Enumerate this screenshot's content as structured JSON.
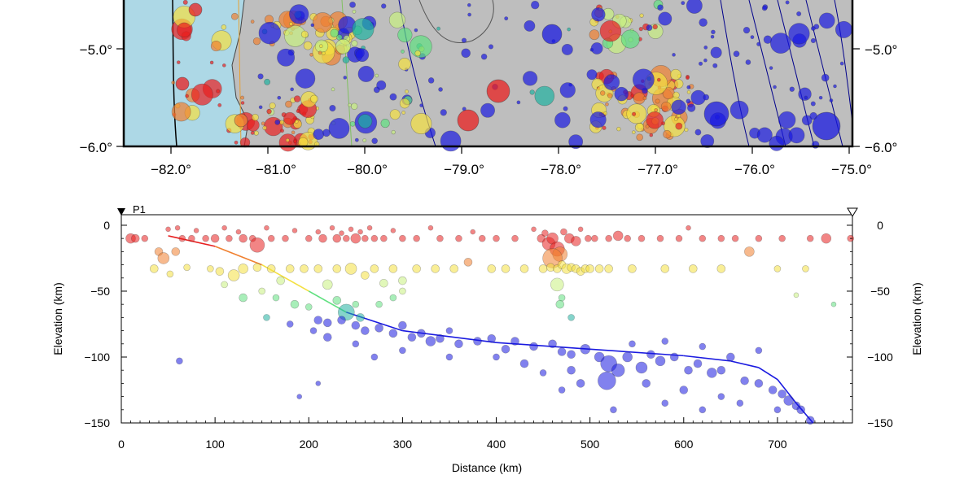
{
  "map": {
    "lon_ticks": [
      "−82.0°",
      "−81.0°",
      "−80.0°",
      "−79.0°",
      "−78.0°",
      "−77.0°",
      "−76.0°",
      "−75.0°"
    ],
    "lat_ticks": [
      "−5.0°",
      "−6.0°"
    ],
    "colors": {
      "ocean": "#add8e6",
      "land": "#bebebe",
      "contour": "#00008b",
      "border": "#000000"
    }
  },
  "profile": {
    "start_label": "P1",
    "end_marker": "open-triangle"
  },
  "chart_data": {
    "type": "scatter",
    "title": "",
    "xlabel": "Distance (km)",
    "ylabel": "Elevation (km)",
    "xlim": [
      0,
      780
    ],
    "ylim": [
      -150,
      8
    ],
    "x_ticks": [
      0,
      100,
      200,
      300,
      400,
      500,
      600,
      700
    ],
    "y_ticks": [
      0,
      -50,
      -100,
      -150
    ],
    "grid": false,
    "legend": "none",
    "slab_curve": [
      [
        50,
        -8
      ],
      [
        100,
        -16
      ],
      [
        150,
        -30
      ],
      [
        200,
        -50
      ],
      [
        240,
        -66
      ],
      [
        300,
        -80
      ],
      [
        400,
        -89
      ],
      [
        500,
        -94
      ],
      [
        600,
        -99
      ],
      [
        650,
        -103
      ],
      [
        680,
        -108
      ],
      [
        700,
        -117
      ],
      [
        720,
        -135
      ],
      [
        738,
        -152
      ]
    ],
    "events": [
      [
        10,
        -10,
        6
      ],
      [
        15,
        -10,
        5
      ],
      [
        25,
        -10,
        4
      ],
      [
        40,
        -20,
        5
      ],
      [
        50,
        -3,
        3
      ],
      [
        60,
        -2,
        3
      ],
      [
        65,
        -10,
        4
      ],
      [
        75,
        -10,
        4
      ],
      [
        80,
        -4,
        3
      ],
      [
        90,
        -10,
        4
      ],
      [
        100,
        -10,
        5
      ],
      [
        110,
        -2,
        3
      ],
      [
        115,
        -10,
        4
      ],
      [
        125,
        -5,
        3
      ],
      [
        130,
        -10,
        5
      ],
      [
        140,
        -10,
        4
      ],
      [
        145,
        -15,
        9
      ],
      [
        155,
        -2,
        3
      ],
      [
        160,
        -10,
        4
      ],
      [
        175,
        -10,
        4
      ],
      [
        185,
        -4,
        3
      ],
      [
        200,
        -10,
        4
      ],
      [
        210,
        -5,
        3
      ],
      [
        215,
        -10,
        5
      ],
      [
        225,
        -2,
        3
      ],
      [
        230,
        -10,
        5
      ],
      [
        235,
        -6,
        3
      ],
      [
        240,
        -10,
        4
      ],
      [
        245,
        -3,
        3
      ],
      [
        250,
        -10,
        6
      ],
      [
        255,
        -5,
        3
      ],
      [
        260,
        -10,
        4
      ],
      [
        265,
        -2,
        3
      ],
      [
        270,
        -10,
        4
      ],
      [
        280,
        -10,
        4
      ],
      [
        290,
        -4,
        3
      ],
      [
        300,
        -10,
        4
      ],
      [
        315,
        -10,
        4
      ],
      [
        330,
        -2,
        3
      ],
      [
        340,
        -10,
        4
      ],
      [
        360,
        -10,
        4
      ],
      [
        375,
        -5,
        3
      ],
      [
        385,
        -10,
        4
      ],
      [
        400,
        -10,
        4
      ],
      [
        420,
        -10,
        4
      ],
      [
        440,
        -3,
        3
      ],
      [
        448,
        -10,
        5
      ],
      [
        452,
        -6,
        4
      ],
      [
        456,
        -14,
        8
      ],
      [
        460,
        -10,
        7
      ],
      [
        465,
        -18,
        9
      ],
      [
        468,
        -22,
        9
      ],
      [
        472,
        -5,
        4
      ],
      [
        478,
        -10,
        6
      ],
      [
        485,
        -12,
        6
      ],
      [
        490,
        -3,
        3
      ],
      [
        498,
        -10,
        4
      ],
      [
        505,
        -10,
        4
      ],
      [
        520,
        -10,
        4
      ],
      [
        530,
        -8,
        6
      ],
      [
        540,
        -10,
        4
      ],
      [
        555,
        -10,
        4
      ],
      [
        575,
        -10,
        4
      ],
      [
        595,
        -10,
        4
      ],
      [
        605,
        -2,
        3
      ],
      [
        620,
        -10,
        4
      ],
      [
        640,
        -10,
        4
      ],
      [
        655,
        -10,
        4
      ],
      [
        680,
        -10,
        4
      ],
      [
        705,
        -10,
        4
      ],
      [
        735,
        -10,
        4
      ],
      [
        752,
        -10,
        6
      ],
      [
        778,
        -10,
        4
      ],
      [
        460,
        -25,
        12
      ],
      [
        45,
        -25,
        7
      ],
      [
        58,
        -20,
        5
      ],
      [
        35,
        -33,
        5
      ],
      [
        52,
        -37,
        4
      ],
      [
        70,
        -32,
        4
      ],
      [
        95,
        -33,
        4
      ],
      [
        120,
        -38,
        7
      ],
      [
        130,
        -33,
        6
      ],
      [
        145,
        -32,
        5
      ],
      [
        160,
        -33,
        5
      ],
      [
        170,
        -42,
        5
      ],
      [
        180,
        -33,
        5
      ],
      [
        195,
        -33,
        5
      ],
      [
        210,
        -33,
        5
      ],
      [
        220,
        -45,
        6
      ],
      [
        230,
        -33,
        5
      ],
      [
        245,
        -33,
        7
      ],
      [
        260,
        -38,
        5
      ],
      [
        270,
        -33,
        5
      ],
      [
        280,
        -44,
        5
      ],
      [
        290,
        -33,
        5
      ],
      [
        300,
        -42,
        5
      ],
      [
        315,
        -33,
        5
      ],
      [
        335,
        -33,
        5
      ],
      [
        355,
        -33,
        5
      ],
      [
        370,
        -28,
        5
      ],
      [
        395,
        -33,
        5
      ],
      [
        410,
        -33,
        5
      ],
      [
        430,
        -33,
        5
      ],
      [
        450,
        -33,
        5
      ],
      [
        458,
        -32,
        5
      ],
      [
        465,
        -33,
        5
      ],
      [
        470,
        -30,
        5
      ],
      [
        475,
        -33,
        6
      ],
      [
        480,
        -32,
        5
      ],
      [
        485,
        -33,
        5
      ],
      [
        490,
        -35,
        5
      ],
      [
        495,
        -33,
        5
      ],
      [
        500,
        -33,
        5
      ],
      [
        510,
        -33,
        5
      ],
      [
        520,
        -33,
        5
      ],
      [
        545,
        -33,
        5
      ],
      [
        580,
        -33,
        5
      ],
      [
        610,
        -33,
        5
      ],
      [
        640,
        -33,
        5
      ],
      [
        670,
        -20,
        6
      ],
      [
        700,
        -33,
        4
      ],
      [
        730,
        -33,
        4
      ],
      [
        150,
        -50,
        4
      ],
      [
        165,
        -55,
        4
      ],
      [
        185,
        -60,
        5
      ],
      [
        200,
        -62,
        4
      ],
      [
        210,
        -72,
        5
      ],
      [
        230,
        -57,
        5
      ],
      [
        250,
        -60,
        4
      ],
      [
        255,
        -70,
        5
      ],
      [
        275,
        -60,
        4
      ],
      [
        290,
        -55,
        4
      ],
      [
        300,
        -50,
        4
      ],
      [
        465,
        -45,
        8
      ],
      [
        468,
        -60,
        5
      ],
      [
        470,
        -55,
        4
      ],
      [
        480,
        -70,
        4
      ],
      [
        720,
        -53,
        3
      ],
      [
        760,
        -60,
        3
      ],
      [
        130,
        -55,
        5
      ],
      [
        110,
        -45,
        4
      ],
      [
        105,
        -35,
        5
      ],
      [
        240,
        -66,
        10
      ],
      [
        220,
        -74,
        5
      ],
      [
        235,
        -72,
        5
      ],
      [
        250,
        -76,
        5
      ],
      [
        260,
        -80,
        5
      ],
      [
        275,
        -78,
        5
      ],
      [
        290,
        -82,
        5
      ],
      [
        300,
        -76,
        5
      ],
      [
        310,
        -85,
        5
      ],
      [
        320,
        -82,
        5
      ],
      [
        330,
        -88,
        6
      ],
      [
        340,
        -86,
        5
      ],
      [
        350,
        -80,
        4
      ],
      [
        360,
        -90,
        5
      ],
      [
        380,
        -88,
        5
      ],
      [
        395,
        -86,
        5
      ],
      [
        410,
        -94,
        5
      ],
      [
        420,
        -88,
        5
      ],
      [
        440,
        -92,
        5
      ],
      [
        460,
        -90,
        5
      ],
      [
        470,
        -96,
        5
      ],
      [
        480,
        -98,
        5
      ],
      [
        495,
        -94,
        6
      ],
      [
        510,
        -100,
        6
      ],
      [
        520,
        -105,
        10
      ],
      [
        530,
        -110,
        8
      ],
      [
        540,
        -100,
        6
      ],
      [
        555,
        -108,
        7
      ],
      [
        565,
        -98,
        5
      ],
      [
        575,
        -103,
        6
      ],
      [
        590,
        -100,
        5
      ],
      [
        605,
        -110,
        5
      ],
      [
        615,
        -105,
        5
      ],
      [
        630,
        -112,
        6
      ],
      [
        640,
        -110,
        5
      ],
      [
        650,
        -100,
        5
      ],
      [
        665,
        -118,
        5
      ],
      [
        680,
        -120,
        5
      ],
      [
        695,
        -125,
        5
      ],
      [
        705,
        -128,
        5
      ],
      [
        712,
        -133,
        6
      ],
      [
        720,
        -137,
        5
      ],
      [
        725,
        -140,
        5
      ],
      [
        735,
        -148,
        5
      ],
      [
        700,
        -140,
        4
      ],
      [
        680,
        -95,
        4
      ],
      [
        518,
        -118,
        11
      ],
      [
        480,
        -110,
        5
      ],
      [
        560,
        -120,
        5
      ],
      [
        600,
        -125,
        5
      ],
      [
        640,
        -130,
        4
      ],
      [
        470,
        -125,
        4
      ],
      [
        300,
        -95,
        4
      ],
      [
        270,
        -100,
        4
      ],
      [
        250,
        -90,
        4
      ],
      [
        220,
        -85,
        5
      ],
      [
        205,
        -80,
        4
      ],
      [
        180,
        -75,
        4
      ],
      [
        155,
        -70,
        4
      ],
      [
        62,
        -103,
        4
      ],
      [
        190,
        -130,
        3
      ],
      [
        210,
        -120,
        3
      ],
      [
        525,
        -140,
        4
      ],
      [
        580,
        -135,
        4
      ],
      [
        620,
        -140,
        4
      ],
      [
        660,
        -135,
        4
      ],
      [
        350,
        -100,
        4
      ],
      [
        400,
        -100,
        4
      ],
      [
        430,
        -105,
        5
      ],
      [
        450,
        -112,
        4
      ],
      [
        490,
        -120,
        5
      ],
      [
        545,
        -90,
        4
      ],
      [
        580,
        -88,
        4
      ],
      [
        620,
        -92,
        4
      ]
    ]
  }
}
